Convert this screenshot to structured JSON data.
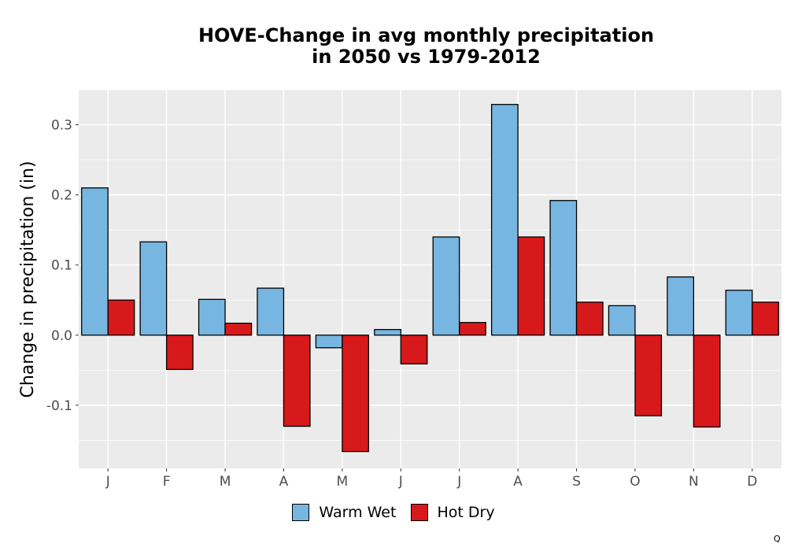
{
  "title_lines": [
    "HOVE-Change in avg monthly precipitation",
    "in 2050 vs 1979-2012"
  ],
  "corner_mark": "Q",
  "colors": {
    "panel_background": "#ebebeb",
    "gridline": "#ffffff",
    "bar_outline": "#000000"
  },
  "chart_data": {
    "type": "bar",
    "title": "HOVE-Change in avg monthly precipitation in 2050 vs 1979-2012",
    "xlabel": "",
    "ylabel": "Change in precipitation (in)",
    "categories": [
      "J",
      "F",
      "M",
      "A",
      "M",
      "J",
      "J",
      "A",
      "S",
      "O",
      "N",
      "D"
    ],
    "series": [
      {
        "name": "Warm Wet",
        "color": "#77b6e1",
        "values": [
          0.21,
          0.133,
          0.051,
          0.067,
          -0.018,
          0.008,
          0.14,
          0.329,
          0.192,
          0.042,
          0.083,
          0.064
        ]
      },
      {
        "name": "Hot Dry",
        "color": "#d7191c",
        "values": [
          0.05,
          -0.049,
          0.017,
          -0.13,
          -0.166,
          -0.041,
          0.018,
          0.14,
          0.047,
          -0.115,
          -0.131,
          0.047
        ]
      }
    ],
    "ylim": [
      -0.19,
      0.35
    ],
    "yticks": [
      0.3,
      0.2,
      0.1,
      0.0,
      -0.1
    ],
    "ytick_labels": [
      "0.3",
      "0.2",
      "0.1",
      "0.0",
      "-0.1"
    ],
    "grid": true,
    "legend_position": "bottom"
  }
}
